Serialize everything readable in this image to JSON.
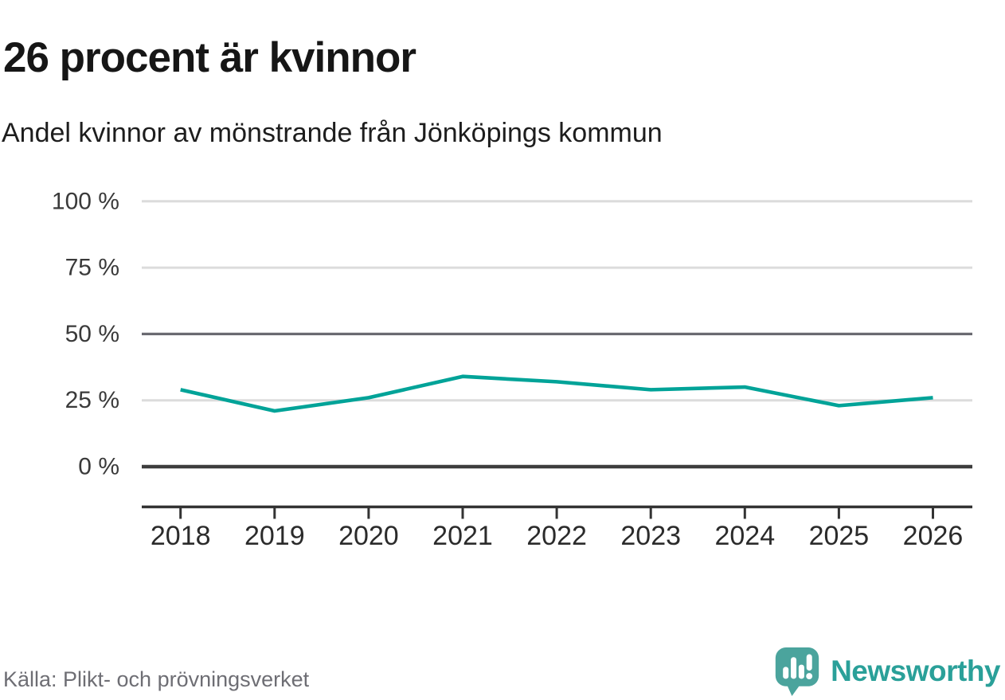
{
  "header": {
    "title": "26 procent är kvinnor",
    "subtitle": "Andel kvinnor av mönstrande från Jönköpings kommun"
  },
  "chart_data": {
    "type": "line",
    "title": "26 procent är kvinnor",
    "subtitle": "Andel kvinnor av mönstrande från Jönköpings kommun",
    "x": [
      "2018",
      "2019",
      "2020",
      "2021",
      "2022",
      "2023",
      "2024",
      "2025",
      "2026"
    ],
    "series": [
      {
        "name": "Andel kvinnor av mönstrande",
        "values": [
          29,
          21,
          26,
          34,
          32,
          29,
          30,
          23,
          26
        ]
      }
    ],
    "unit": "%",
    "ylim": [
      0,
      100
    ],
    "yticks": [
      {
        "value": 100,
        "label": "100 %",
        "style": "light"
      },
      {
        "value": 75,
        "label": "75 %",
        "style": "light"
      },
      {
        "value": 50,
        "label": "50 %",
        "style": "mid"
      },
      {
        "value": 25,
        "label": "25 %",
        "style": "light"
      },
      {
        "value": 0,
        "label": "0 %",
        "style": "zero"
      }
    ],
    "grid": "horizontal",
    "legend": "none",
    "line_color": "#00a398"
  },
  "colors": {
    "accent_line": "#00a398",
    "grid_light": "#dcdcdc",
    "grid_mid": "#6a6a71",
    "grid_zero": "#3d3d3d",
    "axis": "#333333",
    "brand_teal": "#2aa099",
    "logo_bubble": "#4ba49d"
  },
  "footer": {
    "source": "Källa: Plikt- och prövningsverket",
    "brand": "Newsworthy"
  }
}
